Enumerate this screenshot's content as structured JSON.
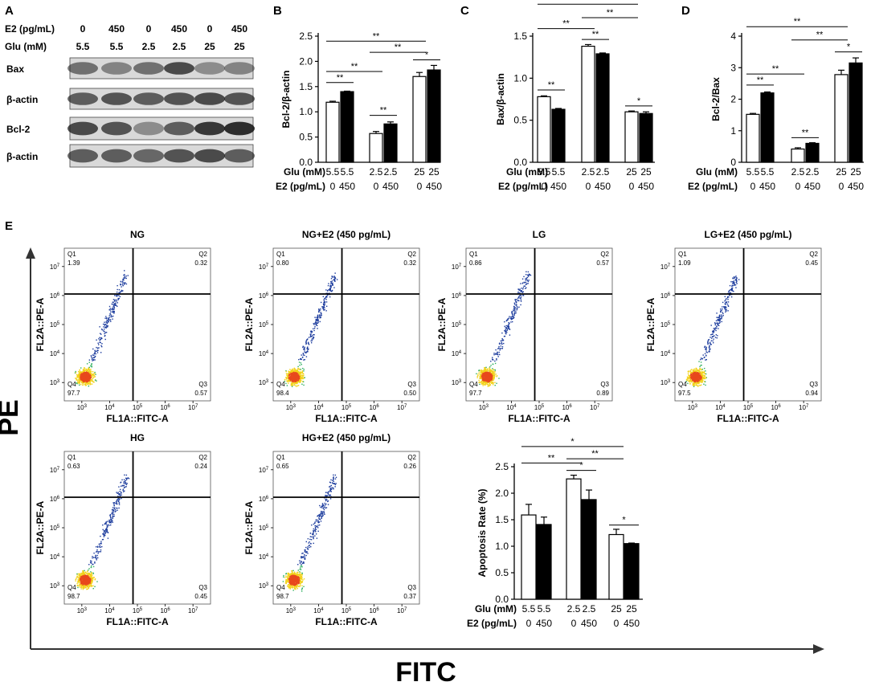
{
  "panel_letters": {
    "A": "A",
    "B": "B",
    "C": "C",
    "D": "D",
    "E": "E"
  },
  "colors": {
    "control_bar": "#ffffff",
    "e2_bar": "#000000",
    "dot_low": "#1a3a9c",
    "dot_mid": "#2fb060",
    "dot_high": "#f2d21a",
    "dot_peak": "#e8491d"
  },
  "western": {
    "row_labels": [
      "E2  (pg/mL)",
      "Glu (mM)"
    ],
    "e2_values": [
      "0",
      "450",
      "0",
      "450",
      "0",
      "450"
    ],
    "glu_values": [
      "5.5",
      "5.5",
      "2.5",
      "2.5",
      "25",
      "25"
    ],
    "blot_labels": [
      "Bax",
      "β-actin",
      "Bcl-2",
      "β-actin"
    ],
    "band_intensity": [
      [
        0.55,
        0.45,
        0.55,
        0.75,
        0.4,
        0.45
      ],
      [
        0.65,
        0.7,
        0.65,
        0.7,
        0.75,
        0.7
      ],
      [
        0.75,
        0.7,
        0.4,
        0.65,
        0.85,
        0.9
      ],
      [
        0.65,
        0.65,
        0.6,
        0.7,
        0.75,
        0.65
      ]
    ]
  },
  "group_labels": {
    "glu_title": "Glu (mM)",
    "e2_title": "E2 (pg/mL)",
    "glu": [
      "5.5",
      "5.5",
      "2.5",
      "2.5",
      "25",
      "25"
    ],
    "e2": [
      "0",
      "450",
      "0",
      "450",
      "0",
      "450"
    ]
  },
  "chart_data": [
    {
      "id": "B",
      "type": "bar",
      "ylabel": "Bcl-2/β-actin",
      "ylim": [
        0,
        2.5
      ],
      "yticks": [
        0,
        0.5,
        1.0,
        1.5,
        2.0,
        2.5
      ],
      "ytick_labels": [
        "0.0",
        "0.5",
        "1.0",
        "1.5",
        "2.0",
        "2.5"
      ],
      "categories": [
        "5.5/0",
        "5.5/450",
        "2.5/0",
        "2.5/450",
        "25/0",
        "25/450"
      ],
      "values": [
        1.19,
        1.4,
        0.57,
        0.76,
        1.7,
        1.83
      ],
      "errors": [
        0.02,
        0.01,
        0.04,
        0.04,
        0.08,
        0.09
      ],
      "significance": [
        {
          "from": 0,
          "to": 1,
          "label": "**",
          "y": 1.58
        },
        {
          "from": 2,
          "to": 3,
          "label": "**",
          "y": 0.93
        },
        {
          "from": 0,
          "to": 2,
          "label": "**",
          "y": 1.8
        },
        {
          "from": 4,
          "to": 5,
          "label": "*",
          "y": 2.03
        },
        {
          "from": 2,
          "to": 4,
          "label": "**",
          "y": 2.18
        },
        {
          "from": 0,
          "to": 4,
          "label": "**",
          "y": 2.4
        }
      ]
    },
    {
      "id": "C",
      "type": "bar",
      "ylabel": "Bax/β-actin",
      "ylim": [
        0,
        1.5
      ],
      "yticks": [
        0,
        0.5,
        1.0,
        1.5
      ],
      "ytick_labels": [
        "0.0",
        "0.5",
        "1.0",
        "1.5"
      ],
      "categories": [
        "5.5/0",
        "5.5/450",
        "2.5/0",
        "2.5/450",
        "25/0",
        "25/450"
      ],
      "values": [
        0.78,
        0.63,
        1.38,
        1.29,
        0.6,
        0.58
      ],
      "errors": [
        0.01,
        0.01,
        0.02,
        0.01,
        0.01,
        0.02
      ],
      "significance": [
        {
          "from": 0,
          "to": 1,
          "label": "**",
          "y": 0.86
        },
        {
          "from": 2,
          "to": 3,
          "label": "**",
          "y": 1.46
        },
        {
          "from": 0,
          "to": 2,
          "label": "**",
          "y": 1.59
        },
        {
          "from": 4,
          "to": 5,
          "label": "*",
          "y": 0.67
        },
        {
          "from": 2,
          "to": 4,
          "label": "**",
          "y": 1.72
        },
        {
          "from": 0,
          "to": 4,
          "label": "**",
          "y": 1.88
        }
      ]
    },
    {
      "id": "D",
      "type": "bar",
      "ylabel": "Bcl-2/Bax",
      "ylim": [
        0,
        4
      ],
      "yticks": [
        0,
        1,
        2,
        3,
        4
      ],
      "ytick_labels": [
        "0",
        "1",
        "2",
        "3",
        "4"
      ],
      "categories": [
        "5.5/0",
        "5.5/450",
        "2.5/0",
        "2.5/450",
        "25/0",
        "25/450"
      ],
      "values": [
        1.52,
        2.2,
        0.42,
        0.6,
        2.78,
        3.15
      ],
      "errors": [
        0.03,
        0.03,
        0.04,
        0.02,
        0.14,
        0.16
      ],
      "significance": [
        {
          "from": 0,
          "to": 1,
          "label": "**",
          "y": 2.45
        },
        {
          "from": 2,
          "to": 3,
          "label": "**",
          "y": 0.78
        },
        {
          "from": 0,
          "to": 2,
          "label": "**",
          "y": 2.8
        },
        {
          "from": 4,
          "to": 5,
          "label": "*",
          "y": 3.5
        },
        {
          "from": 2,
          "to": 4,
          "label": "**",
          "y": 3.88
        },
        {
          "from": 0,
          "to": 4,
          "label": "**",
          "y": 4.3
        }
      ]
    },
    {
      "id": "E",
      "type": "bar",
      "ylabel": "Apoptosis Rate (%)",
      "ylim": [
        0,
        2.5
      ],
      "yticks": [
        0,
        0.5,
        1.0,
        1.5,
        2.0,
        2.5
      ],
      "ytick_labels": [
        "0.0",
        "0.5",
        "1.0",
        "1.5",
        "2.0",
        "2.5"
      ],
      "categories": [
        "5.5/0",
        "5.5/450",
        "2.5/0",
        "2.5/450",
        "25/0",
        "25/450"
      ],
      "values": [
        1.59,
        1.41,
        2.27,
        1.88,
        1.22,
        1.05
      ],
      "errors": [
        0.2,
        0.14,
        0.07,
        0.18,
        0.1,
        0.01
      ],
      "significance": [
        {
          "from": 2,
          "to": 3,
          "label": "*",
          "y": 2.43
        },
        {
          "from": 0,
          "to": 2,
          "label": "**",
          "y": 2.57
        },
        {
          "from": 2,
          "to": 4,
          "label": "**",
          "y": 2.65
        },
        {
          "from": 0,
          "to": 4,
          "label": "*",
          "y": 2.88
        },
        {
          "from": 4,
          "to": 5,
          "label": "*",
          "y": 1.4
        }
      ]
    }
  ],
  "flow": {
    "x_axis_label": "FL1A::FITC-A",
    "y_axis_label": "FL2A::PE-A",
    "tick_exponents": [
      "3",
      "4",
      "5",
      "6",
      "7"
    ],
    "quad_names": [
      "Q1",
      "Q2",
      "Q3",
      "Q4"
    ],
    "plots": [
      {
        "title": "NG",
        "q1": "1.39",
        "q2": "0.32",
        "q3": "0.57",
        "q4": "97.7",
        "seed": 11
      },
      {
        "title": "NG+E2 (450 pg/mL)",
        "q1": "0.80",
        "q2": "0.32",
        "q3": "0.50",
        "q4": "98.4",
        "seed": 23
      },
      {
        "title": "LG",
        "q1": "0.86",
        "q2": "0.57",
        "q3": "0.89",
        "q4": "97.7",
        "seed": 37
      },
      {
        "title": "LG+E2 (450 pg/mL)",
        "q1": "1.09",
        "q2": "0.45",
        "q3": "0.94",
        "q4": "97.5",
        "seed": 41
      },
      {
        "title": "HG",
        "q1": "0.63",
        "q2": "0.24",
        "q3": "0.45",
        "q4": "98.7",
        "seed": 53
      },
      {
        "title": "HG+E2 (450 pg/mL)",
        "q1": "0.65",
        "q2": "0.26",
        "q3": "0.37",
        "q4": "98.7",
        "seed": 67
      }
    ]
  },
  "axis_labels": {
    "pe": "PE",
    "fitc": "FITC"
  }
}
